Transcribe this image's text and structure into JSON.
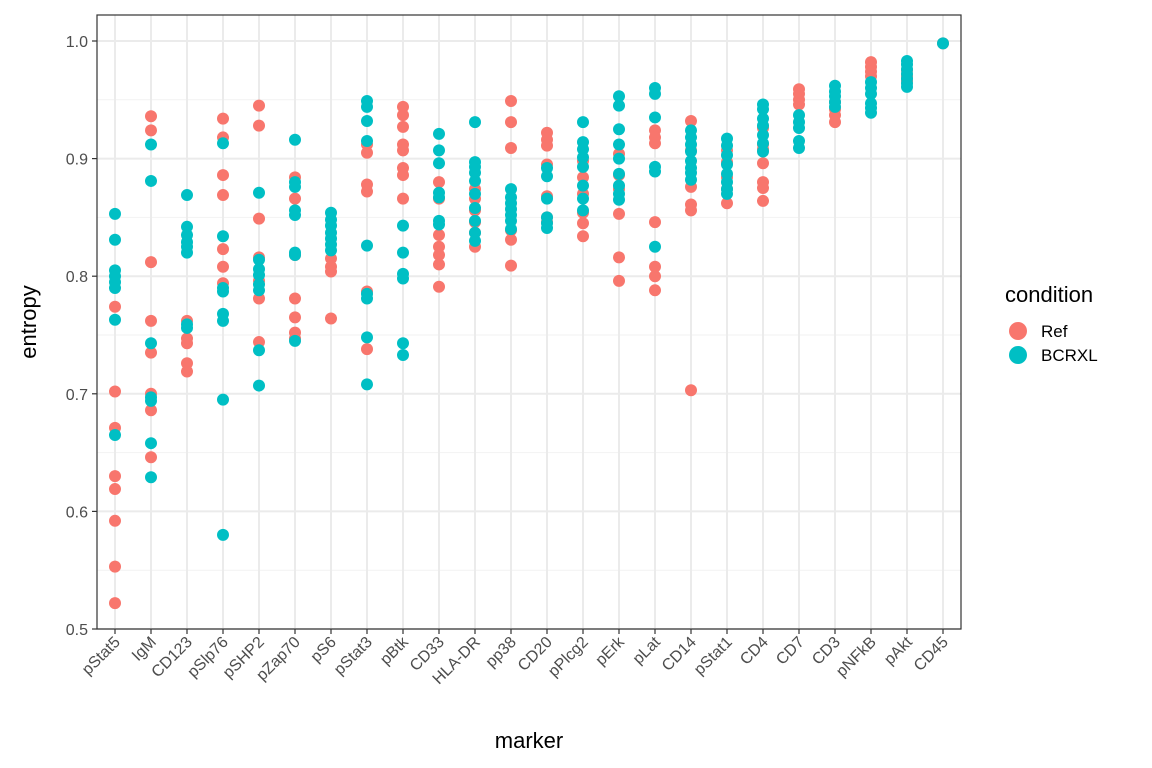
{
  "chart_data": {
    "type": "scatter",
    "title": "",
    "xlabel": "marker",
    "ylabel": "entropy",
    "categories": [
      "pStat5",
      "IgM",
      "CD123",
      "pSlp76",
      "pSHP2",
      "pZap70",
      "pS6",
      "pStat3",
      "pBtk",
      "CD33",
      "HLA-DR",
      "pp38",
      "CD20",
      "pPlcg2",
      "pErk",
      "pLat",
      "CD14",
      "pStat1",
      "CD4",
      "CD7",
      "CD3",
      "pNFkB",
      "pAkt",
      "CD45"
    ],
    "ylim": [
      0.5,
      1.0
    ],
    "yticks": [
      0.5,
      0.6,
      0.7,
      0.8,
      0.9,
      1.0
    ],
    "ytick_labels": [
      "0.5",
      "0.6",
      "0.7",
      "0.8",
      "0.9",
      "1.0"
    ],
    "grid": true,
    "legend": {
      "title": "condition",
      "position": "right",
      "entries": [
        "Ref",
        "BCRXL"
      ]
    },
    "colors": {
      "Ref": "#F8766D",
      "BCRXL": "#00BFC4"
    },
    "series": [
      {
        "name": "Ref",
        "color": "#F8766D",
        "values": [
          [
            0.774,
            0.702,
            0.671,
            0.63,
            0.619,
            0.592,
            0.553,
            0.522
          ],
          [
            0.936,
            0.924,
            0.812,
            0.762,
            0.735,
            0.7,
            0.686,
            0.646
          ],
          [
            0.762,
            0.747,
            0.743,
            0.726,
            0.719
          ],
          [
            0.934,
            0.918,
            0.886,
            0.869,
            0.823,
            0.808,
            0.794
          ],
          [
            0.945,
            0.928,
            0.849,
            0.816,
            0.796,
            0.781,
            0.744
          ],
          [
            0.884,
            0.866,
            0.818,
            0.781,
            0.765,
            0.752,
            0.747
          ],
          [
            0.815,
            0.808,
            0.804,
            0.764
          ],
          [
            0.912,
            0.905,
            0.878,
            0.872,
            0.787,
            0.738
          ],
          [
            0.944,
            0.937,
            0.927,
            0.912,
            0.907,
            0.892,
            0.886,
            0.866
          ],
          [
            0.88,
            0.866,
            0.835,
            0.825,
            0.818,
            0.81,
            0.791
          ],
          [
            0.874,
            0.866,
            0.856,
            0.846,
            0.837,
            0.825
          ],
          [
            0.949,
            0.931,
            0.909,
            0.839,
            0.831,
            0.809
          ],
          [
            0.922,
            0.916,
            0.911,
            0.895,
            0.868,
            0.85,
            0.846
          ],
          [
            0.898,
            0.884,
            0.87,
            0.854,
            0.845,
            0.834
          ],
          [
            0.904,
            0.886,
            0.874,
            0.853,
            0.816,
            0.796
          ],
          [
            0.924,
            0.918,
            0.913,
            0.846,
            0.808,
            0.8,
            0.788
          ],
          [
            0.932,
            0.907,
            0.876,
            0.861,
            0.856,
            0.703
          ],
          [
            0.907,
            0.897,
            0.884,
            0.874,
            0.862
          ],
          [
            0.926,
            0.912,
            0.908,
            0.896,
            0.88,
            0.875,
            0.864
          ],
          [
            0.959,
            0.955,
            0.95,
            0.946
          ],
          [
            0.948,
            0.942,
            0.937,
            0.931
          ],
          [
            0.982,
            0.978,
            0.974,
            0.97
          ],
          [
            0.975,
            0.97,
            0.966
          ],
          [
            0.998
          ]
        ]
      },
      {
        "name": "BCRXL",
        "color": "#00BFC4",
        "values": [
          [
            0.853,
            0.831,
            0.805,
            0.8,
            0.795,
            0.79,
            0.763,
            0.665
          ],
          [
            0.912,
            0.881,
            0.743,
            0.697,
            0.694,
            0.658,
            0.629
          ],
          [
            0.869,
            0.842,
            0.835,
            0.829,
            0.825,
            0.82,
            0.759,
            0.756
          ],
          [
            0.913,
            0.834,
            0.79,
            0.787,
            0.768,
            0.762,
            0.695,
            0.58
          ],
          [
            0.871,
            0.814,
            0.806,
            0.801,
            0.793,
            0.788,
            0.737,
            0.707
          ],
          [
            0.916,
            0.88,
            0.876,
            0.856,
            0.852,
            0.82,
            0.818,
            0.745
          ],
          [
            0.854,
            0.848,
            0.843,
            0.837,
            0.832,
            0.827,
            0.822
          ],
          [
            0.949,
            0.944,
            0.932,
            0.915,
            0.826,
            0.785,
            0.781,
            0.748,
            0.708
          ],
          [
            0.843,
            0.82,
            0.802,
            0.798,
            0.743,
            0.733
          ],
          [
            0.921,
            0.907,
            0.896,
            0.871,
            0.867,
            0.847,
            0.844
          ],
          [
            0.931,
            0.897,
            0.893,
            0.888,
            0.881,
            0.87,
            0.858,
            0.847,
            0.837,
            0.83
          ],
          [
            0.874,
            0.867,
            0.862,
            0.857,
            0.852,
            0.847,
            0.84
          ],
          [
            0.892,
            0.885,
            0.866,
            0.85,
            0.845,
            0.841
          ],
          [
            0.931,
            0.914,
            0.908,
            0.901,
            0.893,
            0.877,
            0.866,
            0.856
          ],
          [
            0.953,
            0.945,
            0.925,
            0.912,
            0.9,
            0.887,
            0.877,
            0.87,
            0.865
          ],
          [
            0.96,
            0.955,
            0.935,
            0.893,
            0.889,
            0.825
          ],
          [
            0.924,
            0.918,
            0.912,
            0.906,
            0.898,
            0.892,
            0.888,
            0.882
          ],
          [
            0.917,
            0.911,
            0.903,
            0.895,
            0.887,
            0.88,
            0.874,
            0.87
          ],
          [
            0.946,
            0.942,
            0.934,
            0.928,
            0.92,
            0.913,
            0.906
          ],
          [
            0.937,
            0.931,
            0.926,
            0.915,
            0.909
          ],
          [
            0.962,
            0.957,
            0.953,
            0.948,
            0.944
          ],
          [
            0.965,
            0.96,
            0.955,
            0.947,
            0.943,
            0.939
          ],
          [
            0.983,
            0.98,
            0.976,
            0.972,
            0.968,
            0.964,
            0.961
          ],
          [
            0.998
          ]
        ]
      }
    ]
  }
}
